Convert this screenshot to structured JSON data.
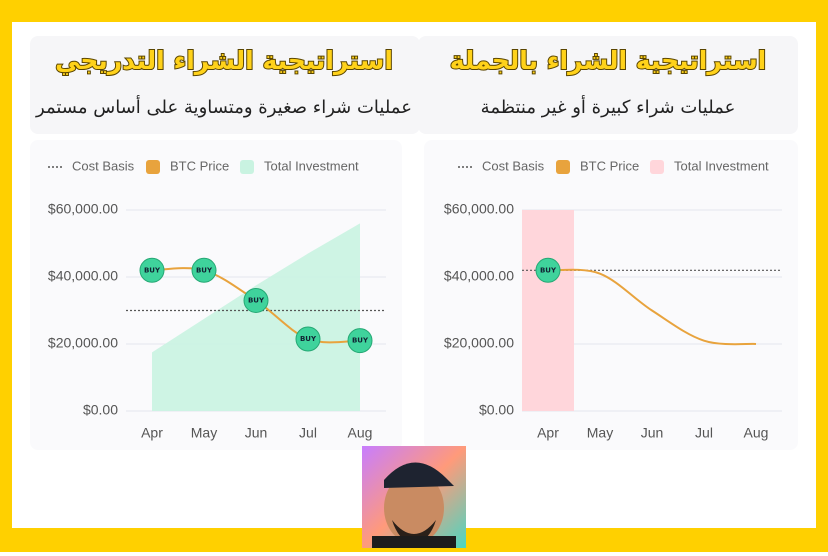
{
  "chart_data": [
    {
      "type": "line",
      "title": "استراتيجية الشراء التدريجي",
      "subtitle": "عمليات شراء صغيرة ومتساوية على أساس مستمر",
      "categories": [
        "Apr",
        "May",
        "Jun",
        "Jul",
        "Aug"
      ],
      "ylim": [
        0,
        60000
      ],
      "yticks": [
        {
          "value": 0,
          "label": "$0.00"
        },
        {
          "value": 20000,
          "label": "$20,000.00"
        },
        {
          "value": 40000,
          "label": "$40,000.00"
        },
        {
          "value": 60000,
          "label": "$60,000.00"
        }
      ],
      "grid": true,
      "series": [
        {
          "name": "Cost Basis",
          "kind": "hline",
          "color": "#555555",
          "value": 30000
        },
        {
          "name": "BTC Price",
          "kind": "line",
          "color": "#e8a33d",
          "values": [
            42000,
            42000,
            33000,
            21500,
            21000
          ]
        },
        {
          "name": "Total Investment",
          "kind": "area",
          "color": "#c9f3e1",
          "values": [
            17500,
            27500,
            37500,
            47000,
            56000
          ]
        }
      ],
      "buy_label": "BUY",
      "buy_at": [
        0,
        1,
        2,
        3,
        4
      ],
      "buy_color": "#3fd39c"
    },
    {
      "type": "line",
      "title": "استراتيجية الشراء بالجملة",
      "subtitle": "عمليات شراء كبيرة أو غير منتظمة",
      "categories": [
        "Apr",
        "May",
        "Jun",
        "Jul",
        "Aug"
      ],
      "ylim": [
        0,
        60000
      ],
      "yticks": [
        {
          "value": 0,
          "label": "$0.00"
        },
        {
          "value": 20000,
          "label": "$20,000.00"
        },
        {
          "value": 40000,
          "label": "$40,000.00"
        },
        {
          "value": 60000,
          "label": "$60,000.00"
        }
      ],
      "grid": true,
      "series": [
        {
          "name": "Cost Basis",
          "kind": "hline",
          "color": "#555555",
          "value": 42000
        },
        {
          "name": "BTC Price",
          "kind": "line",
          "color": "#e8a33d",
          "values": [
            42000,
            41000,
            30000,
            21000,
            20000
          ]
        },
        {
          "name": "Total Investment",
          "kind": "band",
          "color": "#ffd6db",
          "values": [
            60000,
            null,
            null,
            null,
            null
          ]
        }
      ],
      "buy_label": "BUY",
      "buy_at": [
        0
      ],
      "buy_color": "#3fd39c"
    }
  ]
}
